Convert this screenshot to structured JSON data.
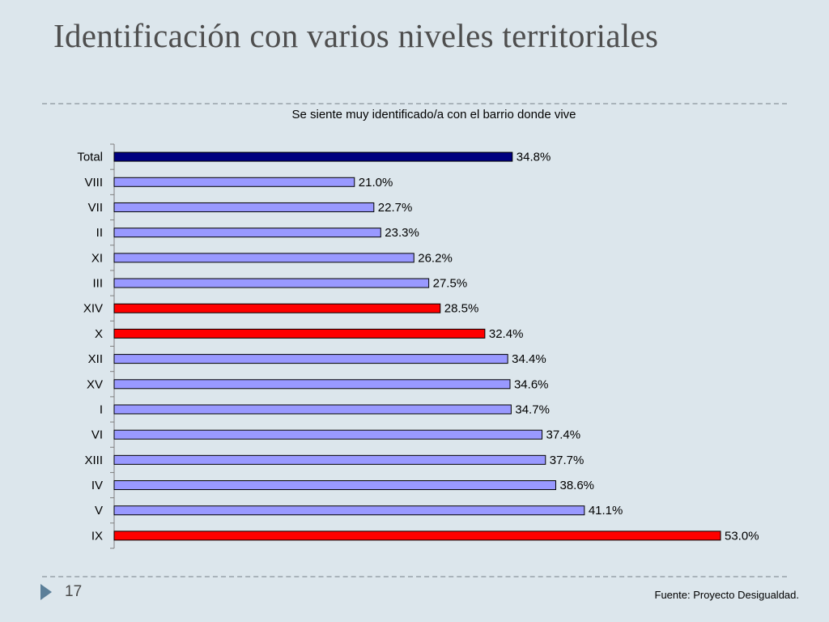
{
  "slide": {
    "title": "Identificación con varios niveles territoriales",
    "number": "17",
    "source": "Fuente: Proyecto Desigualdad."
  },
  "colors": {
    "background": "#dce6ec",
    "total_bar": "#000080",
    "regular_bar": "#9999ff",
    "highlight_bar": "#ff0000",
    "bar_outline": "#000000",
    "nav_arrow": "#5b7f99"
  },
  "chart_data": {
    "type": "bar",
    "orientation": "horizontal",
    "title": "Se siente muy identificado/a con el barrio donde vive",
    "xlim": [
      0,
      55
    ],
    "grid": false,
    "categories": [
      "Total",
      "VIII",
      "VII",
      "II",
      "XI",
      "III",
      "XIV",
      "X",
      "XII",
      "XV",
      "I",
      "VI",
      "XIII",
      "IV",
      "V",
      "IX"
    ],
    "values": [
      34.8,
      21.0,
      22.7,
      23.3,
      26.2,
      27.5,
      28.5,
      32.4,
      34.4,
      34.6,
      34.7,
      37.4,
      37.7,
      38.6,
      41.1,
      53.0
    ],
    "labels": [
      "34.8%",
      "21.0%",
      "22.7%",
      "23.3%",
      "26.2%",
      "27.5%",
      "28.5%",
      "32.4%",
      "34.4%",
      "34.6%",
      "34.7%",
      "37.4%",
      "37.7%",
      "38.6%",
      "41.1%",
      "53.0%"
    ],
    "bar_colors": [
      "#000080",
      "#9999ff",
      "#9999ff",
      "#9999ff",
      "#9999ff",
      "#9999ff",
      "#ff0000",
      "#ff0000",
      "#9999ff",
      "#9999ff",
      "#9999ff",
      "#9999ff",
      "#9999ff",
      "#9999ff",
      "#9999ff",
      "#ff0000"
    ]
  }
}
